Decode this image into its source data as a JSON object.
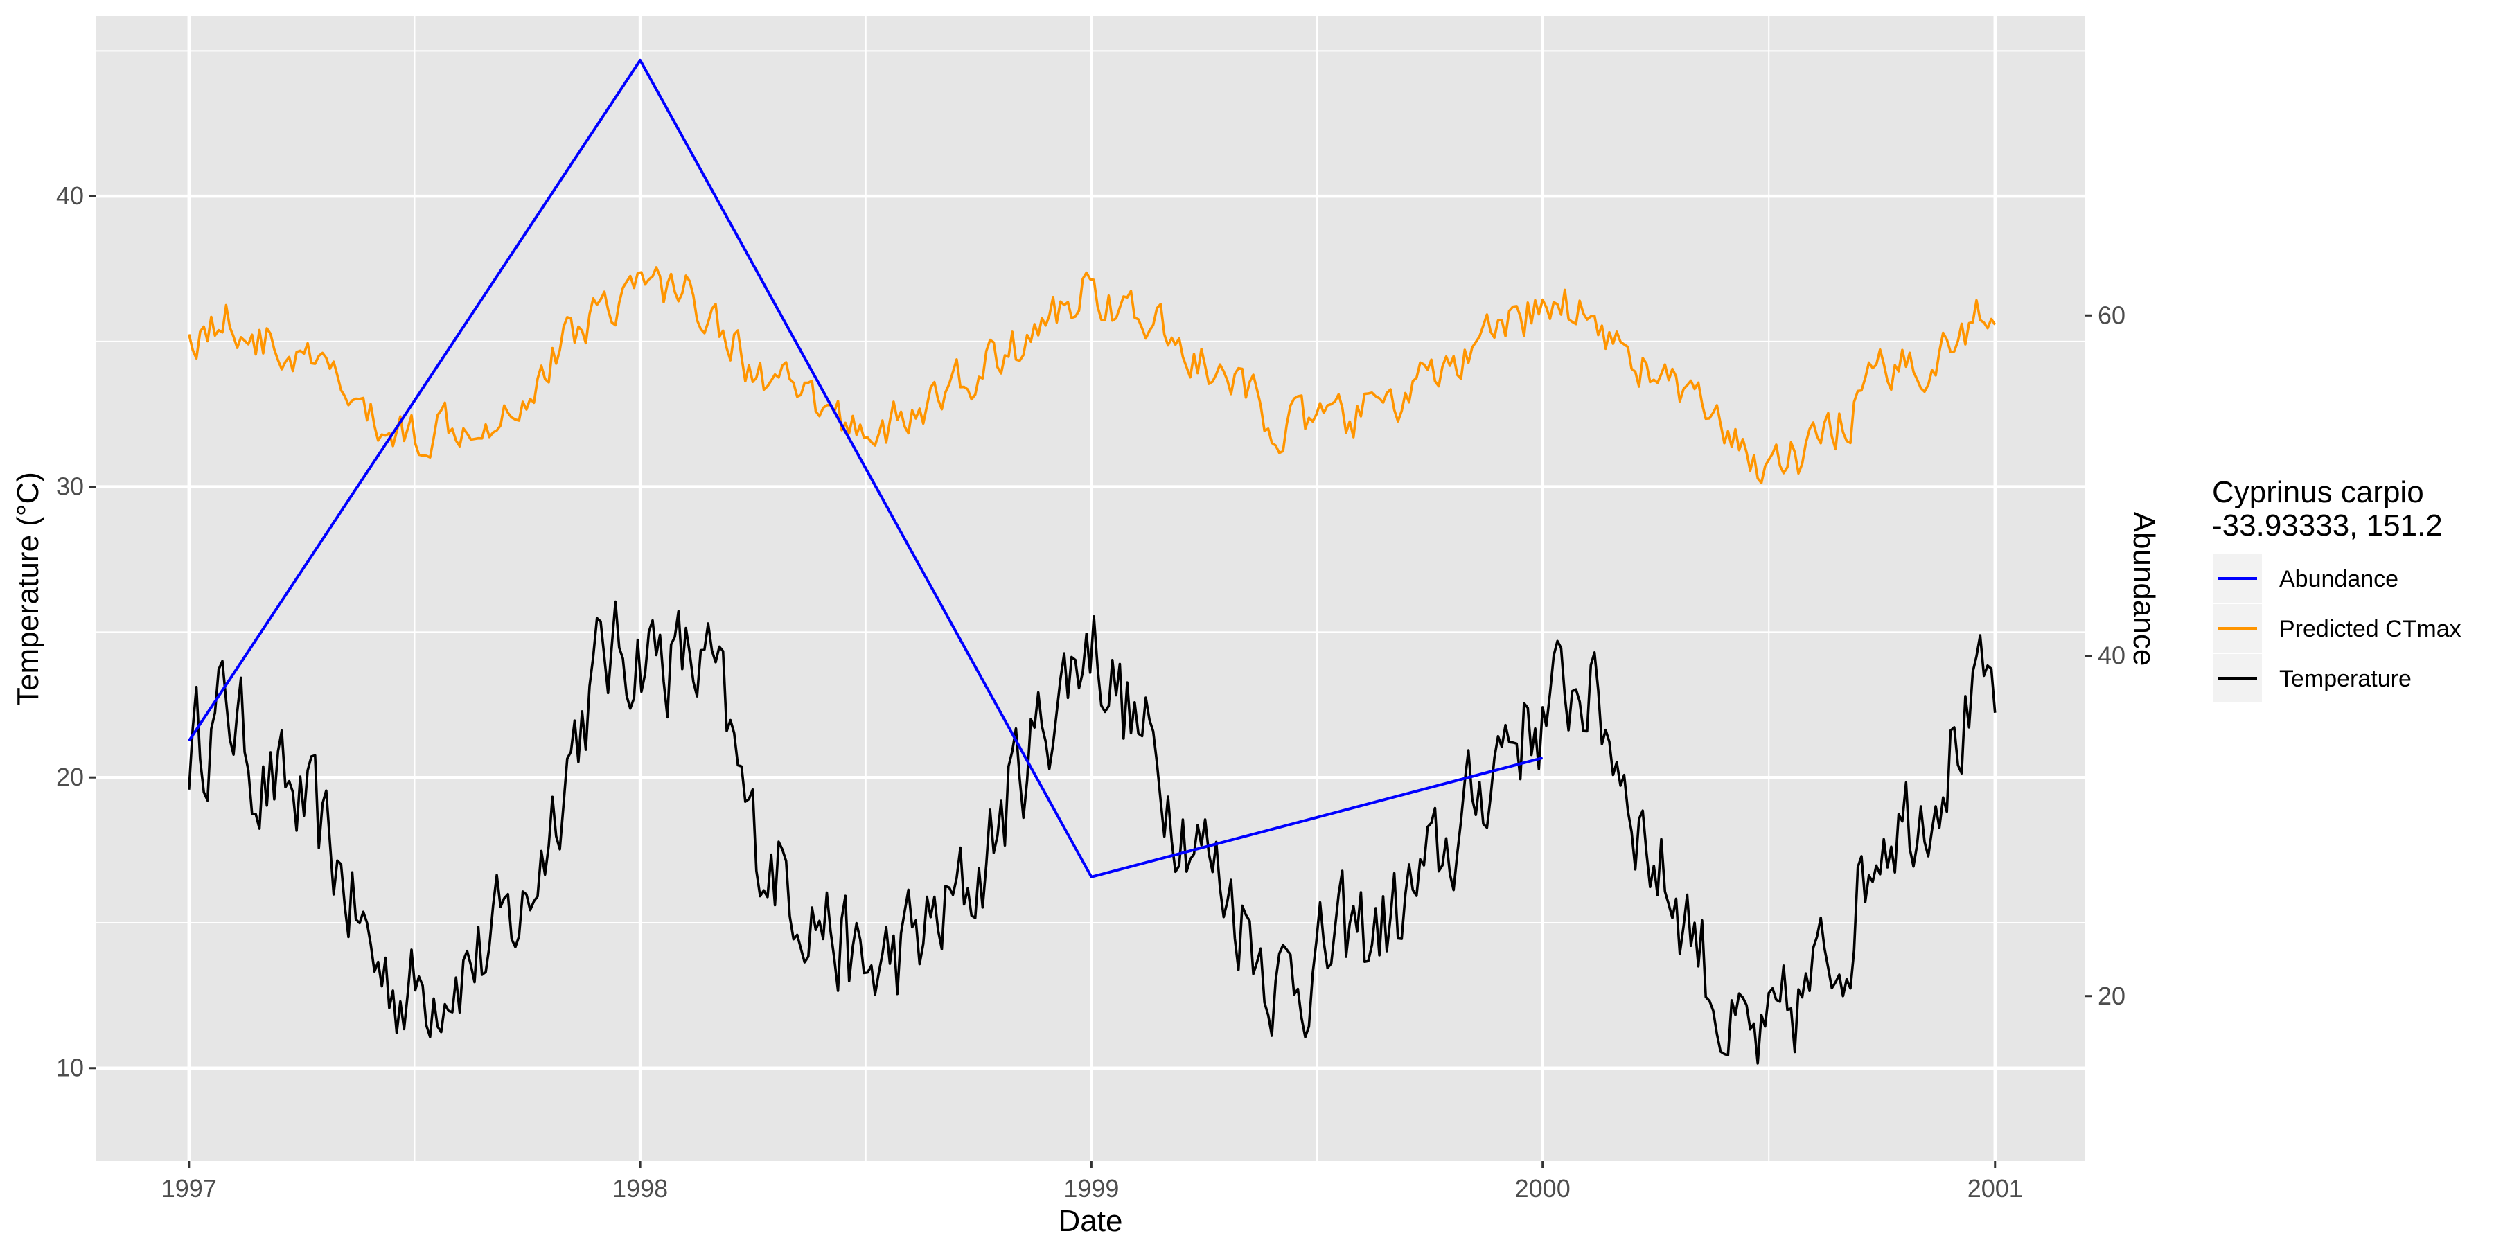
{
  "chart_data": {
    "type": "line",
    "xlabel": "Date",
    "ylabel": "Temperature (°C)",
    "y2label": "Abundance",
    "x_ticks": [
      "1997",
      "1998",
      "1999",
      "2000",
      "2001"
    ],
    "y_ticks": [
      10,
      20,
      30,
      40
    ],
    "y2_ticks": [
      20,
      40,
      60
    ],
    "xlim": [
      "1996-10-18",
      "2001-03-15"
    ],
    "ylim": [
      6.8,
      46.2
    ],
    "y2lim": [
      10.3,
      77.6
    ],
    "grid": true,
    "legend": {
      "title": "Cyprinus carpio\n-33.93333, 151.2",
      "position": "right"
    },
    "colors": {
      "panel": "#e6e6e6",
      "grid": "#ffffff",
      "abundance": "#0000ff",
      "ctmax": "#ff9500",
      "temperature": "#000000",
      "tick_text": "#4d4d4d"
    },
    "series": [
      {
        "name": "Abundance",
        "axis": "right",
        "x": [
          "1997-01-01",
          "1998-01-01",
          "1999-01-01",
          "2000-01-01"
        ],
        "values": [
          35,
          75,
          27,
          34
        ]
      },
      {
        "name": "Predicted CTmax",
        "axis": "left",
        "x": [
          "1997-01-01",
          "1997-02-01",
          "1997-03-01",
          "1997-04-01",
          "1997-05-01",
          "1997-06-01",
          "1997-07-01",
          "1997-08-01",
          "1997-09-01",
          "1997-10-01",
          "1997-11-01",
          "1997-12-01",
          "1998-01-01",
          "1998-02-01",
          "1998-03-01",
          "1998-04-01",
          "1998-05-01",
          "1998-06-01",
          "1998-07-01",
          "1998-08-01",
          "1998-09-01",
          "1998-10-01",
          "1998-11-01",
          "1998-12-01",
          "1999-01-01",
          "1999-02-01",
          "1999-03-01",
          "1999-04-01",
          "1999-05-01",
          "1999-06-01",
          "1999-07-01",
          "1999-08-01",
          "1999-09-01",
          "1999-10-01",
          "1999-11-01",
          "1999-12-01",
          "2000-01-01",
          "2000-02-01",
          "2000-03-01",
          "2000-04-01",
          "2000-05-01",
          "2000-06-01",
          "2000-07-01",
          "2000-08-01",
          "2000-09-01",
          "2000-10-01",
          "2000-11-01",
          "2000-12-01",
          "2001-01-01"
        ],
        "values": [
          35.2,
          35.8,
          35.0,
          34.3,
          33.6,
          32.0,
          31.8,
          32.3,
          32.5,
          33.2,
          35.0,
          36.3,
          37.0,
          36.8,
          36.0,
          34.0,
          33.2,
          32.5,
          32.0,
          32.2,
          33.0,
          34.0,
          34.8,
          35.8,
          37.0,
          35.8,
          35.3,
          34.2,
          33.3,
          32.2,
          32.0,
          32.4,
          32.9,
          33.6,
          34.4,
          35.3,
          36.3,
          36.2,
          35.0,
          33.8,
          33.0,
          31.3,
          30.8,
          31.0,
          32.3,
          33.8,
          34.3,
          35.0,
          36.5
        ]
      },
      {
        "name": "Temperature",
        "axis": "left",
        "x": [
          "1997-01-01",
          "1997-02-01",
          "1997-03-01",
          "1997-04-01",
          "1997-05-01",
          "1997-06-01",
          "1997-07-01",
          "1997-08-01",
          "1997-09-01",
          "1997-10-01",
          "1997-11-01",
          "1997-12-01",
          "1998-01-01",
          "1998-02-01",
          "1998-03-01",
          "1998-04-01",
          "1998-05-01",
          "1998-06-01",
          "1998-07-01",
          "1998-08-01",
          "1998-09-01",
          "1998-10-01",
          "1998-11-01",
          "1998-12-01",
          "1999-01-01",
          "1999-02-01",
          "1999-03-01",
          "1999-04-01",
          "1999-05-01",
          "1999-06-01",
          "1999-07-01",
          "1999-08-01",
          "1999-09-01",
          "1999-10-01",
          "1999-11-01",
          "1999-12-01",
          "2000-01-01",
          "2000-02-01",
          "2000-03-01",
          "2000-04-01",
          "2000-05-01",
          "2000-06-01",
          "2000-07-01",
          "2000-08-01",
          "2000-09-01",
          "2000-10-01",
          "2000-11-01",
          "2000-12-01",
          "2001-01-01"
        ],
        "values": [
          21.0,
          22.5,
          20.0,
          19.0,
          17.0,
          13.5,
          12.5,
          13.5,
          14.0,
          15.5,
          20.5,
          24.0,
          24.5,
          24.0,
          23.5,
          18.0,
          16.5,
          15.0,
          13.0,
          14.0,
          15.0,
          16.5,
          20.0,
          22.5,
          25.0,
          22.0,
          20.0,
          17.5,
          15.5,
          13.0,
          13.5,
          14.5,
          15.0,
          16.5,
          18.5,
          21.5,
          22.0,
          23.5,
          21.0,
          17.0,
          15.0,
          11.0,
          10.5,
          12.5,
          14.5,
          18.5,
          19.0,
          21.5,
          23.0
        ]
      }
    ]
  }
}
